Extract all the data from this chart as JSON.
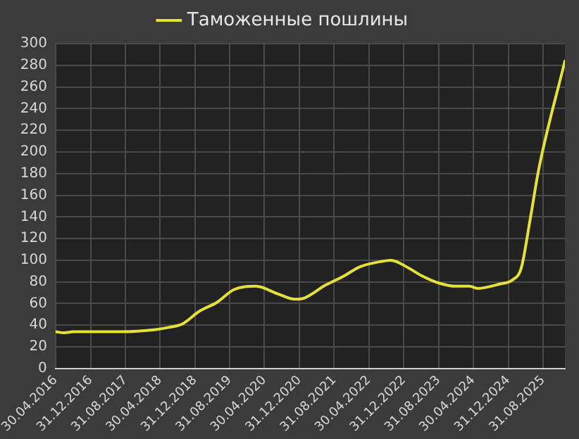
{
  "chart_data": {
    "type": "line",
    "x": [
      "2016-04-30",
      "2016-07",
      "2016-09",
      "2017-08",
      "2018-04",
      "2018-07",
      "2018-10",
      "2019-02",
      "2019-06",
      "2019-10",
      "2020-03",
      "2020-08",
      "2020-12",
      "2021-02",
      "2021-07",
      "2021-11",
      "2022-03",
      "2022-08",
      "2022-10",
      "2023-02",
      "2023-05",
      "2023-09",
      "2024-01",
      "2024-04",
      "2024-06",
      "2024-11",
      "2025-02",
      "2025-04",
      "2025-06",
      "2025-08",
      "2026-01-31"
    ],
    "series": [
      {
        "name": "Таможенные пошлины",
        "color": "#e6e03a",
        "values": [
          34,
          33,
          34,
          34,
          36,
          38,
          41,
          53,
          61,
          73,
          76,
          69,
          64,
          65,
          77,
          85,
          94,
          99,
          100,
          93,
          86,
          79,
          76,
          76,
          74,
          78,
          82,
          93,
          137,
          184,
          284
        ]
      }
    ],
    "xlim": [
      "2016-04-30",
      "2026-01-31"
    ],
    "xticks": [
      {
        "value": "2016-04-30",
        "label": "30.04.2016"
      },
      {
        "value": "2016-12-31",
        "label": "31.12.2016"
      },
      {
        "value": "2017-08-31",
        "label": "31.08.2017"
      },
      {
        "value": "2018-04-30",
        "label": "30.04.2018"
      },
      {
        "value": "2018-12-31",
        "label": "31.12.2018"
      },
      {
        "value": "2019-08-31",
        "label": "31.08.2019"
      },
      {
        "value": "2020-04-30",
        "label": "30.04.2020"
      },
      {
        "value": "2020-12-31",
        "label": "31.12.2020"
      },
      {
        "value": "2021-08-31",
        "label": "31.08.2021"
      },
      {
        "value": "2022-04-30",
        "label": "30.04.2022"
      },
      {
        "value": "2022-12-31",
        "label": "31.12.2022"
      },
      {
        "value": "2023-08-31",
        "label": "31.08.2023"
      },
      {
        "value": "2024-04-30",
        "label": "30.04.2024"
      },
      {
        "value": "2024-12-31",
        "label": "31.12.2024"
      },
      {
        "value": "2025-08-31",
        "label": "31.08.2025"
      }
    ],
    "ylim": [
      0,
      300
    ],
    "yticks": [
      0,
      20,
      40,
      60,
      80,
      100,
      120,
      140,
      160,
      180,
      200,
      220,
      240,
      260,
      280,
      300
    ],
    "grid": true,
    "legend": "top",
    "marker": "none",
    "line_style": "solid"
  }
}
